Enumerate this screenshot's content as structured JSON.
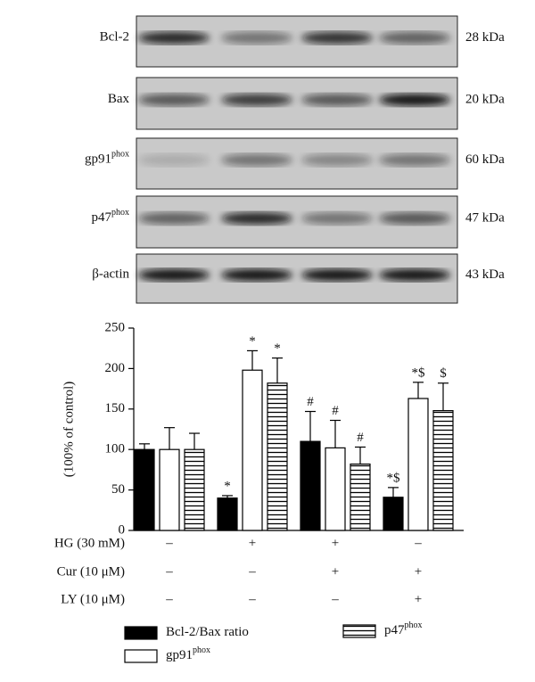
{
  "blot": {
    "rows": [
      {
        "label": "Bcl-2",
        "size": "28 kDa"
      },
      {
        "label": "Bax",
        "size": "20 kDa"
      },
      {
        "label": "gp91",
        "sup": "phox",
        "size": "60 kDa"
      },
      {
        "label": "p47",
        "sup": "phox",
        "size": "47 kDa"
      },
      {
        "label": "β-actin",
        "size": "43 kDa"
      }
    ]
  },
  "chart_data": {
    "type": "bar",
    "ylabel": "(100% of control)",
    "categories": [
      null,
      null,
      null,
      null
    ],
    "ylim": [
      0,
      250
    ],
    "yticks": [
      0,
      50,
      100,
      150,
      200,
      250
    ],
    "series": [
      {
        "name": "Bcl-2/Bax ratio",
        "color": "#000000",
        "fill": "solid",
        "values": [
          100,
          40,
          110,
          41
        ],
        "errors": [
          7,
          3,
          37,
          12
        ],
        "annotations": [
          null,
          "*",
          "#",
          "*$"
        ]
      },
      {
        "name": "gp91",
        "name_sup": "phox",
        "color": "#000000",
        "fill": "none",
        "values": [
          100,
          198,
          102,
          163
        ],
        "errors": [
          27,
          24,
          34,
          20
        ],
        "annotations": [
          null,
          "*",
          "#",
          "*$"
        ]
      },
      {
        "name": "p47",
        "name_sup": "phox",
        "color": "#000000",
        "fill": "hstripes",
        "values": [
          100,
          182,
          82,
          148
        ],
        "errors": [
          20,
          31,
          21,
          34
        ],
        "annotations": [
          null,
          "*",
          "#",
          "$"
        ]
      }
    ],
    "conditions": [
      {
        "label": "HG (30 mM)",
        "values": [
          "–",
          "+",
          "+",
          "–"
        ]
      },
      {
        "label": "Cur (10 μM)",
        "values": [
          "–",
          "–",
          "+",
          "+"
        ]
      },
      {
        "label": "LY (10 μM)",
        "values": [
          "–",
          "–",
          "–",
          "+"
        ]
      }
    ]
  }
}
